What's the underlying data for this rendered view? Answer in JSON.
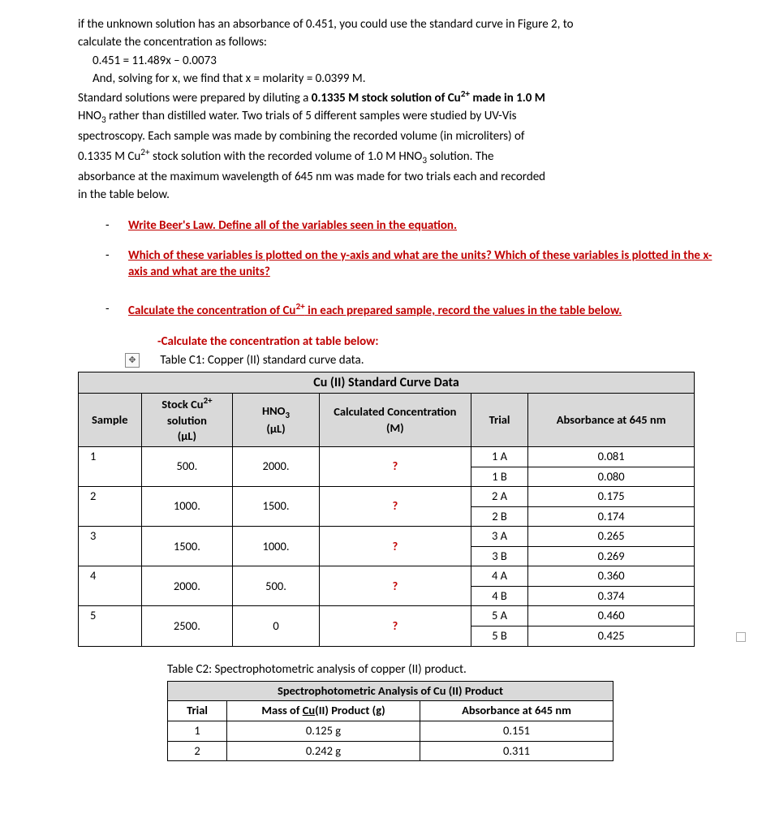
{
  "intro": {
    "line1_a": "if the unknown solution has an absorbance of 0.451, you could use the standard curve in Figure 2, to",
    "line1_b": "calculate the concentration as follows:",
    "eq": "0.451 = 11.489x – 0.0073",
    "solve": "And, solving for x, we find that x = molarity = 0.0399 M.",
    "p2_a": "Standard solutions were prepared by diluting a ",
    "p2_bold_a": "0.1335 M stock solution of Cu",
    "p2_bold_b": " made in 1.0 M",
    "p2_c": "HNO",
    "p2_d": " rather than distilled water. Two trials of 5 different samples were studied by UV-Vis",
    "p2_e": "spectroscopy. Each sample was made by combining the recorded volume (in microliters) of",
    "p2_f": "0.1335 M Cu",
    "p2_g": " stock solution with the recorded volume of 1.0 M HNO",
    "p2_h": " solution. The",
    "p2_i": "absorbance at the maximum wavelength of 645 nm was made for two trials each and recorded",
    "p2_j": "in the table below."
  },
  "bullets": {
    "b1": "Write Beer's Law. Define all of the variables seen in the equation.",
    "b2": "Which of these variables is plotted on the y-axis and what are the units? Which of these variables is plotted in the x-axis and what are the units?",
    "b3_a": "Calculate the concentration of Cu",
    "b3_b": " in each prepared sample, record the values in the table below."
  },
  "subhead": "-Calculate the concentration at table below:",
  "t1": {
    "caption": "Table C1: Copper (II) standard curve data.",
    "main_title": "Cu (II) Standard Curve Data",
    "headers": {
      "sample": "Sample",
      "stock_a": "Stock Cu",
      "stock_b": "solution",
      "stock_unit": "(µL)",
      "hno3_a": "HNO",
      "hno3_unit": "(µL)",
      "calc": "Calculated Concentration (M)",
      "trial": "Trial",
      "abs": "Absorbance at 645 nm"
    },
    "rows": [
      {
        "sample": "1",
        "stock": "500.",
        "hno3": "2000.",
        "calc": "?",
        "trials": [
          {
            "t": "1 A",
            "a": "0.081"
          },
          {
            "t": "1 B",
            "a": "0.080"
          }
        ]
      },
      {
        "sample": "2",
        "stock": "1000.",
        "hno3": "1500.",
        "calc": "?",
        "trials": [
          {
            "t": "2 A",
            "a": "0.175"
          },
          {
            "t": "2 B",
            "a": "0.174"
          }
        ]
      },
      {
        "sample": "3",
        "stock": "1500.",
        "hno3": "1000.",
        "calc": "?",
        "trials": [
          {
            "t": "3 A",
            "a": "0.265"
          },
          {
            "t": "3 B",
            "a": "0.269"
          }
        ]
      },
      {
        "sample": "4",
        "stock": "2000.",
        "hno3": "500.",
        "calc": "?",
        "trials": [
          {
            "t": "4 A",
            "a": "0.360"
          },
          {
            "t": "4 B",
            "a": "0.374"
          }
        ]
      },
      {
        "sample": "5",
        "stock": "2500.",
        "hno3": "0",
        "calc": "?",
        "trials": [
          {
            "t": "5 A",
            "a": "0.460"
          },
          {
            "t": "5 B",
            "a": "0.425"
          }
        ]
      }
    ]
  },
  "t2": {
    "caption": "Table C2: Spectrophotometric analysis of copper (II) product.",
    "title": "Spectrophotometric Analysis of Cu (II) Product",
    "headers": {
      "trial": "Trial",
      "mass_a": "Mass of ",
      "mass_b": "Cu",
      "mass_c": "(II) Product (g)",
      "abs": "Absorbance at 645 nm"
    },
    "rows": [
      {
        "trial": "1",
        "mass": "0.125 g",
        "abs": "0.151"
      },
      {
        "trial": "2",
        "mass": "0.242 g",
        "abs": "0.311"
      }
    ]
  },
  "colors": {
    "red": "#c00000",
    "header_bg": "#d9d9d9",
    "border": "#000000",
    "text": "#000000"
  }
}
